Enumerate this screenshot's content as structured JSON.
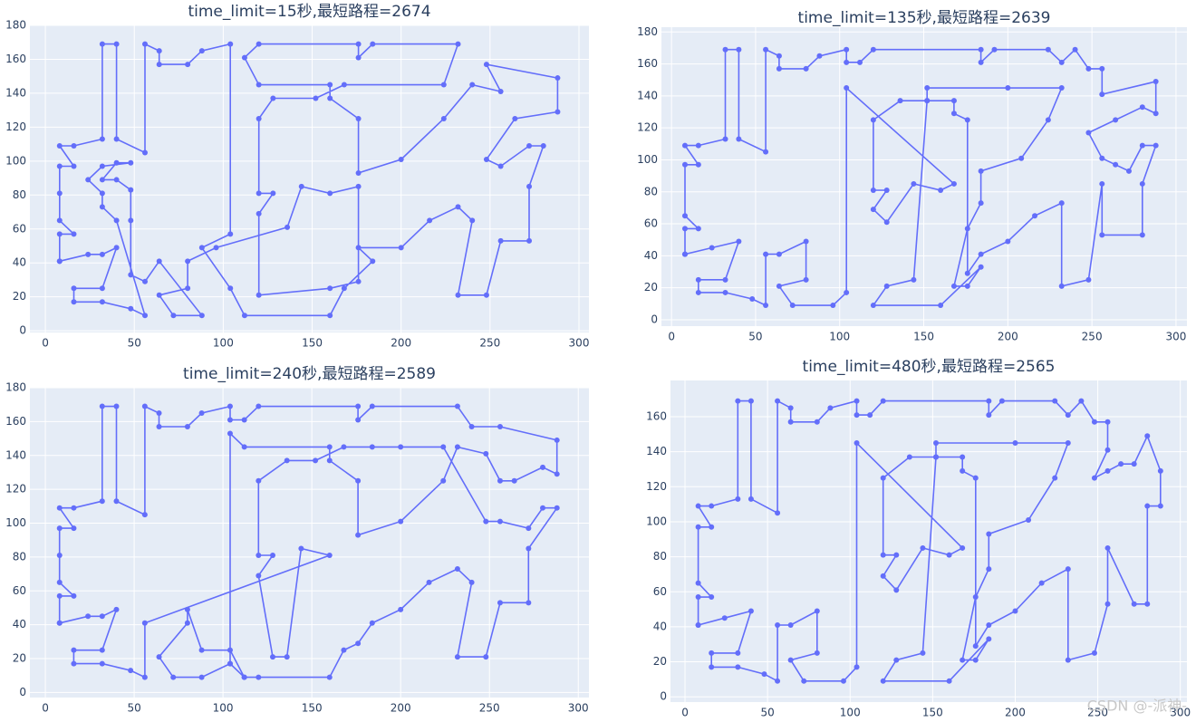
{
  "chart_data": [
    {
      "type": "line",
      "title": "time_limit=15秒,最短路程=2674",
      "color": "#636efa",
      "markers": true,
      "grid": true,
      "x": [
        8,
        8,
        16,
        8,
        8,
        8,
        16,
        8,
        16,
        32,
        32,
        40,
        40,
        56,
        56,
        64,
        64,
        80,
        88,
        104,
        104,
        88,
        104,
        112,
        160,
        168,
        184,
        176,
        200,
        216,
        232,
        240,
        232,
        248,
        256,
        272,
        272,
        280,
        272,
        256,
        248,
        264,
        288,
        288,
        248,
        256,
        240,
        224,
        200,
        176,
        176,
        160,
        160,
        120,
        112,
        120,
        176,
        176,
        184,
        232,
        224,
        168,
        152,
        128,
        120,
        120,
        128,
        120,
        120,
        160,
        176,
        176,
        160,
        144,
        136,
        96,
        80,
        80,
        64,
        72,
        88,
        64,
        56,
        48,
        48,
        48,
        40,
        32,
        40,
        48,
        32,
        24,
        32,
        32,
        40,
        56,
        48,
        32,
        16,
        16,
        32,
        40,
        32,
        24,
        8
      ],
      "values": [
        41,
        57,
        57,
        65,
        81,
        97,
        97,
        109,
        109,
        113,
        169,
        169,
        113,
        105,
        169,
        165,
        157,
        157,
        165,
        169,
        57,
        49,
        25,
        9,
        9,
        25,
        41,
        49,
        49,
        65,
        73,
        65,
        21,
        21,
        53,
        53,
        85,
        109,
        109,
        97,
        101,
        125,
        129,
        149,
        157,
        141,
        145,
        125,
        101,
        93,
        125,
        137,
        145,
        145,
        161,
        169,
        169,
        161,
        169,
        169,
        145,
        145,
        137,
        137,
        125,
        81,
        81,
        69,
        21,
        25,
        29,
        85,
        81,
        85,
        61,
        49,
        41,
        25,
        21,
        9,
        9,
        41,
        29,
        33,
        65,
        83,
        89,
        89,
        99,
        99,
        97,
        89,
        81,
        73,
        65,
        9,
        13,
        17,
        17,
        25,
        25,
        49,
        45,
        45,
        41
      ],
      "xlim": [
        -8.7,
        305.6
      ],
      "ylim": [
        -1,
        180
      ],
      "xticks": [
        0,
        50,
        100,
        150,
        200,
        250,
        300
      ],
      "yticks": [
        0,
        20,
        40,
        60,
        80,
        100,
        120,
        140,
        160,
        180
      ]
    },
    {
      "type": "line",
      "title": "time_limit=135秒,最短路程=2639",
      "color": "#636efa",
      "markers": true,
      "grid": true,
      "x": [
        8,
        8,
        16,
        8,
        8,
        16,
        8,
        16,
        32,
        32,
        40,
        40,
        56,
        56,
        64,
        64,
        80,
        88,
        104,
        104,
        112,
        120,
        184,
        184,
        192,
        224,
        232,
        240,
        248,
        256,
        256,
        288,
        288,
        280,
        264,
        248,
        256,
        264,
        272,
        280,
        288,
        280,
        280,
        256,
        256,
        248,
        232,
        232,
        216,
        200,
        184,
        176,
        176,
        168,
        168,
        152,
        152,
        200,
        232,
        224,
        208,
        184,
        184,
        176,
        168,
        176,
        184,
        160,
        120,
        128,
        144,
        152,
        136,
        120,
        120,
        128,
        120,
        128,
        144,
        160,
        168,
        104,
        104,
        96,
        72,
        64,
        80,
        80,
        64,
        56,
        56,
        48,
        32,
        16,
        16,
        32,
        40,
        24,
        8
      ],
      "values": [
        41,
        57,
        57,
        65,
        97,
        97,
        109,
        109,
        113,
        169,
        169,
        113,
        105,
        169,
        165,
        157,
        157,
        165,
        169,
        161,
        161,
        169,
        169,
        161,
        169,
        169,
        161,
        169,
        157,
        157,
        141,
        149,
        129,
        133,
        125,
        117,
        101,
        97,
        93,
        109,
        109,
        85,
        53,
        53,
        85,
        25,
        21,
        73,
        65,
        49,
        41,
        29,
        125,
        129,
        137,
        137,
        145,
        145,
        145,
        125,
        101,
        93,
        73,
        57,
        21,
        21,
        33,
        9,
        9,
        21,
        25,
        137,
        137,
        125,
        81,
        81,
        69,
        61,
        85,
        81,
        85,
        145,
        17,
        9,
        9,
        21,
        25,
        49,
        41,
        41,
        9,
        13,
        17,
        17,
        25,
        25,
        49,
        45,
        41
      ],
      "xlim": [
        -6,
        306.5
      ],
      "ylim": [
        -4,
        183
      ],
      "xticks": [
        0,
        50,
        100,
        150,
        200,
        250,
        300
      ],
      "yticks": [
        0,
        20,
        40,
        60,
        80,
        100,
        120,
        140,
        160,
        180
      ]
    },
    {
      "type": "line",
      "title": "time_limit=240秒,最短路程=2589",
      "color": "#636efa",
      "markers": true,
      "grid": true,
      "x": [
        8,
        8,
        16,
        8,
        8,
        8,
        16,
        8,
        16,
        32,
        32,
        40,
        40,
        56,
        56,
        64,
        64,
        80,
        88,
        104,
        104,
        112,
        120,
        176,
        176,
        184,
        232,
        240,
        256,
        288,
        288,
        280,
        264,
        256,
        248,
        232,
        224,
        200,
        176,
        176,
        160,
        160,
        112,
        104,
        104,
        112,
        104,
        88,
        80,
        80,
        64,
        72,
        88,
        104,
        112,
        120,
        160,
        168,
        176,
        184,
        200,
        216,
        232,
        240,
        232,
        248,
        256,
        272,
        272,
        288,
        280,
        272,
        256,
        248,
        224,
        200,
        184,
        168,
        152,
        136,
        120,
        120,
        128,
        120,
        128,
        136,
        144,
        160,
        56,
        56,
        48,
        32,
        16,
        16,
        32,
        40,
        32,
        24,
        8
      ],
      "values": [
        41,
        57,
        57,
        65,
        81,
        97,
        97,
        109,
        109,
        113,
        169,
        169,
        113,
        105,
        169,
        165,
        157,
        157,
        165,
        169,
        161,
        161,
        169,
        169,
        161,
        169,
        169,
        157,
        157,
        149,
        129,
        133,
        125,
        125,
        141,
        145,
        125,
        101,
        93,
        125,
        137,
        145,
        145,
        153,
        17,
        9,
        25,
        25,
        49,
        41,
        21,
        9,
        9,
        17,
        9,
        9,
        9,
        25,
        29,
        41,
        49,
        65,
        73,
        65,
        21,
        21,
        53,
        53,
        85,
        109,
        109,
        97,
        101,
        101,
        145,
        145,
        145,
        145,
        137,
        137,
        125,
        81,
        81,
        69,
        21,
        21,
        85,
        81,
        41,
        9,
        13,
        17,
        17,
        25,
        25,
        49,
        45,
        45,
        41
      ],
      "xlim": [
        -8.7,
        306
      ],
      "ylim": [
        -3,
        180
      ],
      "xticks": [
        0,
        50,
        100,
        150,
        200,
        250,
        300
      ],
      "yticks": [
        0,
        20,
        40,
        60,
        80,
        100,
        120,
        140,
        160,
        180
      ]
    },
    {
      "type": "line",
      "title": "time_limit=480秒,最短路程=2565",
      "color": "#636efa",
      "markers": true,
      "grid": true,
      "x": [
        8,
        8,
        16,
        8,
        8,
        16,
        8,
        16,
        32,
        32,
        40,
        40,
        56,
        56,
        64,
        64,
        80,
        88,
        104,
        104,
        112,
        120,
        184,
        184,
        192,
        224,
        232,
        240,
        248,
        256,
        256,
        248,
        256,
        264,
        272,
        280,
        288,
        288,
        280,
        280,
        272,
        256,
        256,
        248,
        232,
        232,
        216,
        200,
        184,
        176,
        176,
        168,
        168,
        152,
        152,
        200,
        232,
        224,
        208,
        184,
        184,
        176,
        168,
        176,
        184,
        160,
        120,
        128,
        144,
        152,
        136,
        120,
        120,
        128,
        120,
        128,
        144,
        160,
        168,
        104,
        104,
        96,
        72,
        64,
        80,
        80,
        64,
        56,
        56,
        48,
        32,
        16,
        16,
        32,
        40,
        24,
        8
      ],
      "values": [
        41,
        57,
        57,
        65,
        97,
        97,
        109,
        109,
        113,
        169,
        169,
        113,
        105,
        169,
        165,
        157,
        157,
        165,
        169,
        161,
        161,
        169,
        169,
        161,
        169,
        169,
        161,
        169,
        157,
        157,
        141,
        125,
        129,
        133,
        133,
        149,
        129,
        109,
        109,
        53,
        53,
        85,
        53,
        25,
        21,
        73,
        65,
        49,
        41,
        29,
        125,
        129,
        137,
        137,
        145,
        145,
        145,
        125,
        101,
        93,
        73,
        57,
        21,
        21,
        33,
        9,
        9,
        21,
        25,
        137,
        137,
        125,
        81,
        81,
        69,
        61,
        85,
        81,
        85,
        145,
        17,
        9,
        9,
        21,
        25,
        49,
        41,
        41,
        9,
        13,
        17,
        17,
        25,
        25,
        49,
        45,
        41
      ],
      "xlim": [
        -8.8,
        304
      ],
      "ylim": [
        -3,
        180.7
      ],
      "xticks": [
        0,
        50,
        100,
        150,
        200,
        250,
        300
      ],
      "yticks": [
        0,
        20,
        40,
        60,
        80,
        100,
        120,
        140,
        160
      ]
    }
  ],
  "watermark": "CSDN @-派神-"
}
